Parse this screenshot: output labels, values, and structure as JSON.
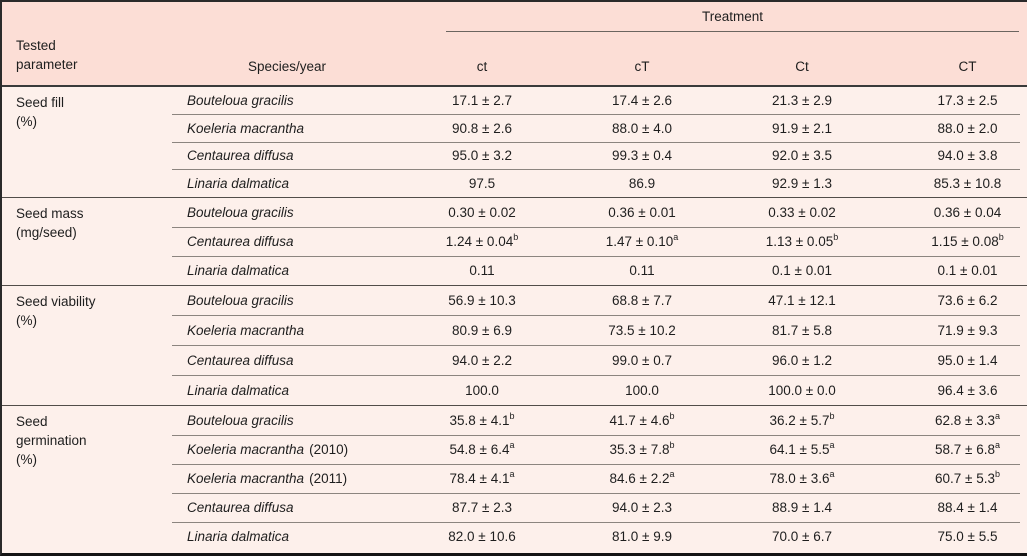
{
  "header": {
    "tested_parameter": "Tested\nparameter",
    "species_year": "Species/year",
    "treatment": "Treatment",
    "treatments": [
      "ct",
      "cT",
      "Ct",
      "CT"
    ]
  },
  "groups": [
    {
      "parameter": "Seed fill\n(%)",
      "rows": [
        {
          "species": "Bouteloua gracilis",
          "year": "",
          "values": [
            "17.1 ± 2.7",
            "17.4 ± 2.6",
            "21.3 ± 2.9",
            "17.3 ± 2.5"
          ]
        },
        {
          "species": "Koeleria macrantha",
          "year": "",
          "values": [
            "90.8 ± 2.6",
            "88.0 ± 4.0",
            "91.9 ± 2.1",
            "88.0 ± 2.0"
          ]
        },
        {
          "species": "Centaurea diffusa",
          "year": "",
          "values": [
            "95.0 ± 3.2",
            "99.3 ± 0.4",
            "92.0 ± 3.5",
            "94.0 ± 3.8"
          ]
        },
        {
          "species": "Linaria dalmatica",
          "year": "",
          "values": [
            "97.5",
            "86.9",
            "92.9 ± 1.3",
            "85.3 ± 10.8"
          ]
        }
      ]
    },
    {
      "parameter": "Seed mass\n(mg/seed)",
      "rows": [
        {
          "species": "Bouteloua gracilis",
          "year": "",
          "values": [
            "0.30 ± 0.02",
            "0.36 ± 0.01",
            "0.33 ± 0.02",
            "0.36 ± 0.04"
          ]
        },
        {
          "species": "Centaurea diffusa",
          "year": "",
          "values": [
            "1.24 ± 0.04^b",
            "1.47 ± 0.10^a",
            "1.13 ± 0.05^b",
            "1.15 ± 0.08^b"
          ]
        },
        {
          "species": "Linaria dalmatica",
          "year": "",
          "values": [
            "0.11",
            "0.11",
            "0.1 ± 0.01",
            "0.1 ± 0.01"
          ]
        }
      ]
    },
    {
      "parameter": "Seed viability\n(%)",
      "rows": [
        {
          "species": "Bouteloua gracilis",
          "year": "",
          "values": [
            "56.9 ± 10.3",
            "68.8 ± 7.7",
            "47.1 ± 12.1",
            "73.6 ± 6.2"
          ]
        },
        {
          "species": "Koeleria macrantha",
          "year": "",
          "values": [
            "80.9 ± 6.9",
            "73.5 ± 10.2",
            "81.7 ± 5.8",
            "71.9 ± 9.3"
          ]
        },
        {
          "species": "Centaurea diffusa",
          "year": "",
          "values": [
            "94.0 ± 2.2",
            "99.0 ± 0.7",
            "96.0 ± 1.2",
            "95.0 ± 1.4"
          ]
        },
        {
          "species": "Linaria dalmatica",
          "year": "",
          "values": [
            "100.0",
            "100.0",
            "100.0 ± 0.0",
            "96.4 ± 3.6"
          ]
        }
      ]
    },
    {
      "parameter": "Seed\ngermination\n(%)",
      "rows": [
        {
          "species": "Bouteloua gracilis",
          "year": "",
          "values": [
            "35.8 ± 4.1^b",
            "41.7 ± 4.6^b",
            "36.2 ± 5.7^b",
            "62.8 ± 3.3^a"
          ]
        },
        {
          "species": "Koeleria macrantha",
          "year": "(2010)",
          "values": [
            "54.8 ± 6.4^a",
            "35.3 ± 7.8^b",
            "64.1 ± 5.5^a",
            "58.7 ± 6.8^a"
          ]
        },
        {
          "species": "Koeleria macrantha",
          "year": "(2011)",
          "values": [
            "78.4 ± 4.1^a",
            "84.6 ± 2.2^a",
            "78.0 ± 3.6^a",
            "60.7 ± 5.3^b"
          ]
        },
        {
          "species": "Centaurea diffusa",
          "year": "",
          "values": [
            "87.7 ± 2.3",
            "94.0 ± 2.3",
            "88.9 ± 1.4",
            "88.4 ± 1.4"
          ]
        },
        {
          "species": "Linaria dalmatica",
          "year": "",
          "values": [
            "82.0 ± 10.6",
            "81.0 ± 9.9",
            "70.0 ± 6.7",
            "75.0 ± 5.5"
          ]
        }
      ]
    }
  ],
  "colors": {
    "header_bg": "#fcded6",
    "body_bg": "#fdf0eb",
    "rule_dark": "#3a3a3a",
    "rule_group": "#524d49",
    "rule_row": "#8c857f",
    "frame": "#2a2a2a"
  }
}
